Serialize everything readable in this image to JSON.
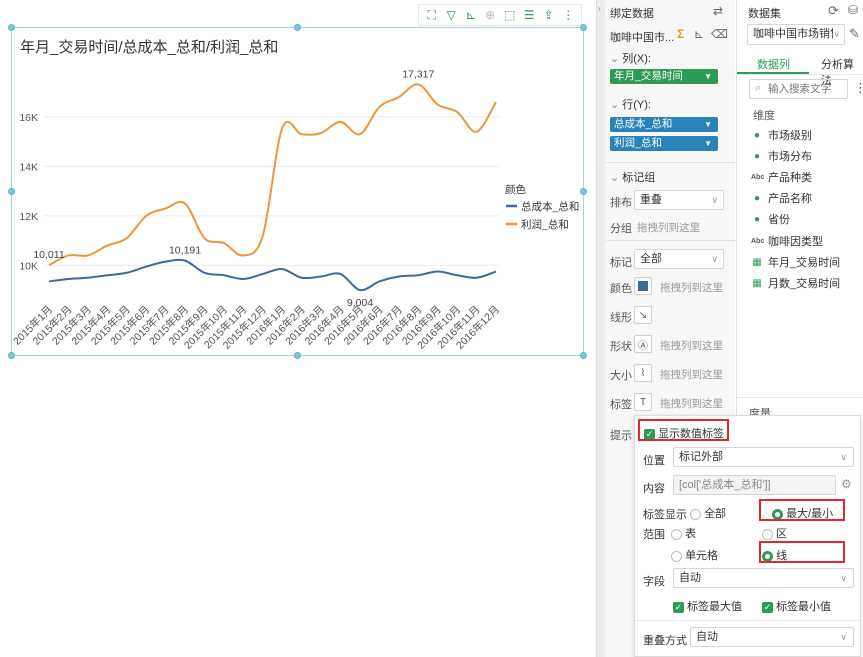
{
  "chart": {
    "title": "年月_交易时间/总成本_总和/利润_总和",
    "legend_title": "颜色",
    "toolbar_icons": [
      "expand-icon",
      "filter-icon",
      "axis-icon",
      "zoom-icon",
      "select-icon",
      "list-icon",
      "export-icon",
      "more-icon"
    ]
  },
  "chart_data": {
    "type": "line",
    "categories": [
      "2015年1月",
      "2015年2月",
      "2015年3月",
      "2015年4月",
      "2015年5月",
      "2015年6月",
      "2015年7月",
      "2015年8月",
      "2015年9月",
      "2015年10月",
      "2015年11月",
      "2015年12月",
      "2016年1月",
      "2016年2月",
      "2016年3月",
      "2016年4月",
      "2016年5月",
      "2016年6月",
      "2016年7月",
      "2016年8月",
      "2016年9月",
      "2016年10月",
      "2016年11月",
      "2016年12月"
    ],
    "ylim": [
      8600,
      18300
    ],
    "y_ticks": [
      "10K",
      "12K",
      "14K",
      "16K"
    ],
    "y_tick_values": [
      10000,
      12000,
      14000,
      16000
    ],
    "series": [
      {
        "name": "总成本_总和",
        "color": "#3e6a9d",
        "values": [
          9350,
          9450,
          9500,
          9600,
          9700,
          9950,
          10150,
          10191,
          9700,
          9600,
          9450,
          9650,
          9850,
          9500,
          9550,
          9650,
          9004,
          9350,
          9550,
          9600,
          9750,
          9600,
          9500,
          9750
        ]
      },
      {
        "name": "利润_总和",
        "color": "#f0953b",
        "values": [
          10011,
          10400,
          10400,
          10800,
          11100,
          12000,
          12300,
          12500,
          11100,
          10900,
          10400,
          11200,
          15550,
          15300,
          15350,
          15800,
          15300,
          16400,
          16800,
          17317,
          16500,
          16200,
          15400,
          16600
        ]
      }
    ],
    "data_labels": [
      {
        "series": 1,
        "index": 0,
        "text": "10,011"
      },
      {
        "series": 0,
        "index": 7,
        "text": "10,191"
      },
      {
        "series": 0,
        "index": 16,
        "text": "9,004"
      },
      {
        "series": 1,
        "index": 19,
        "text": "17,317"
      }
    ]
  },
  "binding": {
    "title": "绑定数据",
    "dataset_short": "咖啡中国市...",
    "columns_label": "列(X):",
    "columns_field": "年月_交易时间",
    "rows_label": "行(Y):",
    "rows_fields": [
      "总成本_总和",
      "利润_总和"
    ],
    "mark_group": "标记组",
    "arrange_label": "排布",
    "arrange_value": "重叠",
    "group_label": "分组",
    "drop_hint": "拖拽列到这里",
    "mark_label": "标记",
    "mark_value": "全部",
    "color_label": "颜色",
    "line_label": "线形",
    "shape_label": "形状",
    "size_label": "大小",
    "label_label": "标签",
    "tip_label": "提示"
  },
  "dataset": {
    "title": "数据集",
    "selected": "咖啡中国市场销售",
    "tabs": [
      "数据列",
      "分析算法"
    ],
    "search_placeholder": "输入搜索文字",
    "dim_header": "维度",
    "dims": [
      {
        "icon": "globe-icon",
        "label": "市场级别"
      },
      {
        "icon": "globe-icon",
        "label": "市场分布"
      },
      {
        "icon": "abc-icon",
        "label": "产品种类"
      },
      {
        "icon": "globe-icon",
        "label": "产品名称"
      },
      {
        "icon": "globe-icon",
        "label": "省份"
      },
      {
        "icon": "abc-icon",
        "label": "咖啡因类型"
      },
      {
        "icon": "calendar-icon",
        "label": "年月_交易时间"
      },
      {
        "icon": "calendar-icon",
        "label": "月数_交易时间"
      }
    ],
    "measure_header": "度量"
  },
  "popup": {
    "show_value_label": "显示数值标签",
    "position_label": "位置",
    "position_value": "标记外部",
    "content_label": "内容",
    "content_value": "[col['总成本_总和']]",
    "label_display": "标签显示",
    "opt_all": "全部",
    "opt_maxmin": "最大/最小",
    "range_label": "范围",
    "opt_table": "表",
    "opt_zone": "区",
    "opt_cell": "单元格",
    "opt_line": "线",
    "field_label": "字段",
    "field_value": "自动",
    "label_max": "标签最大值",
    "label_min": "标签最小值",
    "overlap_label": "重叠方式",
    "overlap_value": "自动"
  }
}
